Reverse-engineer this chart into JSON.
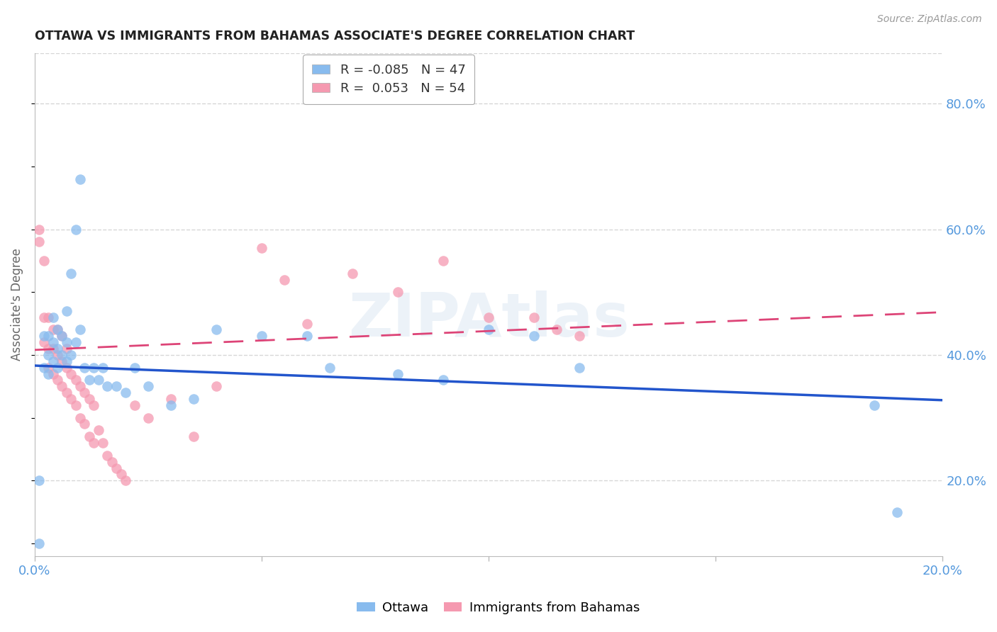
{
  "title": "OTTAWA VS IMMIGRANTS FROM BAHAMAS ASSOCIATE'S DEGREE CORRELATION CHART",
  "source": "Source: ZipAtlas.com",
  "ylabel": "Associate's Degree",
  "xlim": [
    0.0,
    0.2
  ],
  "ylim": [
    0.08,
    0.88
  ],
  "yticks_right": [
    0.2,
    0.4,
    0.6,
    0.8
  ],
  "ytick_labels_right": [
    "20.0%",
    "40.0%",
    "60.0%",
    "80.0%"
  ],
  "xtick_vals": [
    0.0,
    0.05,
    0.1,
    0.15,
    0.2
  ],
  "xtick_labels": [
    "0.0%",
    "",
    "",
    "",
    "20.0%"
  ],
  "grid_color": "#cccccc",
  "background_color": "#ffffff",
  "watermark": "ZIPAtlas",
  "blue_color": "#88bbee",
  "pink_color": "#f599b0",
  "blue_line_color": "#2255cc",
  "pink_line_color": "#dd4477",
  "R_ottawa": -0.085,
  "N_ottawa": 47,
  "R_bahamas": 0.053,
  "N_bahamas": 54,
  "ottawa_x": [
    0.001,
    0.001,
    0.002,
    0.002,
    0.003,
    0.003,
    0.003,
    0.004,
    0.004,
    0.004,
    0.005,
    0.005,
    0.005,
    0.006,
    0.006,
    0.007,
    0.007,
    0.007,
    0.008,
    0.008,
    0.009,
    0.009,
    0.01,
    0.01,
    0.011,
    0.012,
    0.013,
    0.014,
    0.015,
    0.016,
    0.018,
    0.02,
    0.022,
    0.025,
    0.03,
    0.035,
    0.04,
    0.05,
    0.06,
    0.065,
    0.08,
    0.09,
    0.1,
    0.11,
    0.12,
    0.185,
    0.19
  ],
  "ottawa_y": [
    0.1,
    0.2,
    0.38,
    0.43,
    0.37,
    0.4,
    0.43,
    0.39,
    0.42,
    0.46,
    0.38,
    0.41,
    0.44,
    0.4,
    0.43,
    0.39,
    0.42,
    0.47,
    0.4,
    0.53,
    0.42,
    0.6,
    0.44,
    0.68,
    0.38,
    0.36,
    0.38,
    0.36,
    0.38,
    0.35,
    0.35,
    0.34,
    0.38,
    0.35,
    0.32,
    0.33,
    0.44,
    0.43,
    0.43,
    0.38,
    0.37,
    0.36,
    0.44,
    0.43,
    0.38,
    0.32,
    0.15
  ],
  "bahamas_x": [
    0.001,
    0.001,
    0.002,
    0.002,
    0.002,
    0.003,
    0.003,
    0.003,
    0.004,
    0.004,
    0.004,
    0.005,
    0.005,
    0.005,
    0.006,
    0.006,
    0.006,
    0.007,
    0.007,
    0.007,
    0.008,
    0.008,
    0.009,
    0.009,
    0.01,
    0.01,
    0.011,
    0.011,
    0.012,
    0.012,
    0.013,
    0.013,
    0.014,
    0.015,
    0.016,
    0.017,
    0.018,
    0.019,
    0.02,
    0.022,
    0.025,
    0.03,
    0.035,
    0.04,
    0.05,
    0.055,
    0.06,
    0.07,
    0.08,
    0.09,
    0.1,
    0.11,
    0.115,
    0.12
  ],
  "bahamas_y": [
    0.58,
    0.6,
    0.42,
    0.46,
    0.55,
    0.38,
    0.41,
    0.46,
    0.37,
    0.41,
    0.44,
    0.36,
    0.4,
    0.44,
    0.35,
    0.39,
    0.43,
    0.34,
    0.38,
    0.41,
    0.33,
    0.37,
    0.32,
    0.36,
    0.3,
    0.35,
    0.29,
    0.34,
    0.27,
    0.33,
    0.26,
    0.32,
    0.28,
    0.26,
    0.24,
    0.23,
    0.22,
    0.21,
    0.2,
    0.32,
    0.3,
    0.33,
    0.27,
    0.35,
    0.57,
    0.52,
    0.45,
    0.53,
    0.5,
    0.55,
    0.46,
    0.46,
    0.44,
    0.43
  ],
  "blue_line_x": [
    0.0,
    0.2
  ],
  "blue_line_y": [
    0.383,
    0.328
  ],
  "pink_line_x": [
    0.0,
    0.2
  ],
  "pink_line_y": [
    0.408,
    0.468
  ]
}
